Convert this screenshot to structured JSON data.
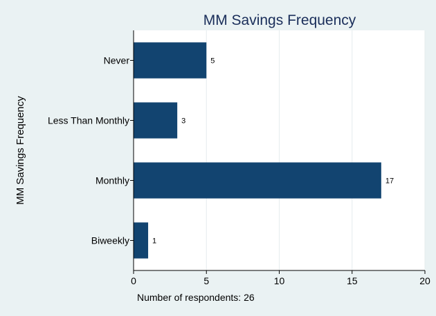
{
  "chart_data": {
    "type": "bar",
    "orientation": "horizontal",
    "title": "MM Savings Frequency",
    "ylabel": "MM Savings Frequency",
    "xlabel": "",
    "note": "Number of respondents: 26",
    "categories": [
      "Never",
      "Less Than Monthly",
      "Monthly",
      "Biweekly"
    ],
    "values": [
      5,
      3,
      17,
      1
    ],
    "data_labels": [
      "5",
      "3",
      "17",
      "1"
    ],
    "xlim": [
      0,
      20
    ],
    "xticks": [
      0,
      5,
      10,
      15,
      20
    ],
    "xtick_labels": [
      "0",
      "5",
      "10",
      "15",
      "20"
    ],
    "grid": "vertical gridlines at major x ticks",
    "colors": {
      "bar": "#124470",
      "background": "#eaf2f3",
      "plot_background": "#ffffff",
      "gridline": "#e6ecee",
      "title": "#1a2e5a"
    }
  }
}
